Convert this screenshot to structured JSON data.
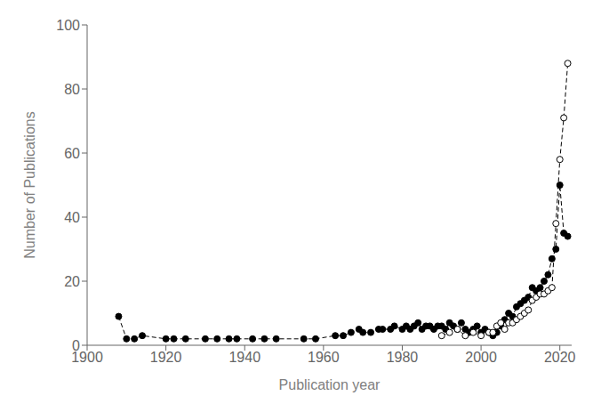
{
  "chart_data": {
    "type": "line",
    "title": "",
    "xlabel": "Publication year",
    "ylabel": "Number of Publications",
    "xlim": [
      1900,
      2023
    ],
    "ylim": [
      0,
      100
    ],
    "xticks": [
      1900,
      1920,
      1940,
      1960,
      1980,
      2000,
      2020
    ],
    "yticks": [
      0,
      20,
      40,
      60,
      80,
      100
    ],
    "grid": false,
    "series": [
      {
        "color": "black",
        "marker": "circle",
        "line_style": "dashed",
        "x": [
          1908,
          1910,
          1912,
          1914,
          1920,
          1922,
          1925,
          1930,
          1933,
          1936,
          1938,
          1942,
          1945,
          1948,
          1955,
          1958,
          1963,
          1965,
          1967,
          1969,
          1970,
          1972,
          1974,
          1975,
          1977,
          1978,
          1980,
          1981,
          1982,
          1983,
          1984,
          1985,
          1986,
          1987,
          1988,
          1989,
          1990,
          1991,
          1992,
          1993,
          1994,
          1995,
          1996,
          1997,
          1998,
          1999,
          2000,
          2001,
          2002,
          2003,
          2004,
          2005,
          2006,
          2007,
          2008,
          2009,
          2010,
          2011,
          2012,
          2013,
          2014,
          2015,
          2016,
          2017,
          2018,
          2019,
          2020,
          2021,
          2022
        ],
        "values": [
          9,
          2,
          2,
          3,
          2,
          2,
          2,
          2,
          2,
          2,
          2,
          2,
          2,
          2,
          2,
          2,
          3,
          3,
          4,
          5,
          4,
          4,
          5,
          5,
          5,
          6,
          5,
          6,
          5,
          6,
          7,
          5,
          6,
          6,
          5,
          6,
          6,
          5,
          7,
          6,
          5,
          7,
          5,
          4,
          5,
          6,
          4,
          5,
          4,
          3,
          4,
          6,
          8,
          10,
          9,
          12,
          13,
          14,
          15,
          18,
          17,
          18,
          20,
          22,
          27,
          30,
          50,
          35,
          34
        ]
      },
      {
        "color": "black",
        "marker": "open_circle",
        "line_style": "dashed",
        "x": [
          1990,
          1992,
          1994,
          1996,
          1998,
          2000,
          2002,
          2003,
          2004,
          2005,
          2006,
          2007,
          2008,
          2009,
          2010,
          2011,
          2012,
          2013,
          2014,
          2015,
          2016,
          2017,
          2018,
          2019,
          2020,
          2021,
          2022
        ],
        "values": [
          3,
          4,
          5,
          3,
          4,
          3,
          4,
          4,
          6,
          7,
          5,
          7,
          7,
          8,
          9,
          10,
          11,
          14,
          15,
          16,
          16,
          17,
          18,
          38,
          58,
          71,
          88
        ]
      }
    ]
  }
}
